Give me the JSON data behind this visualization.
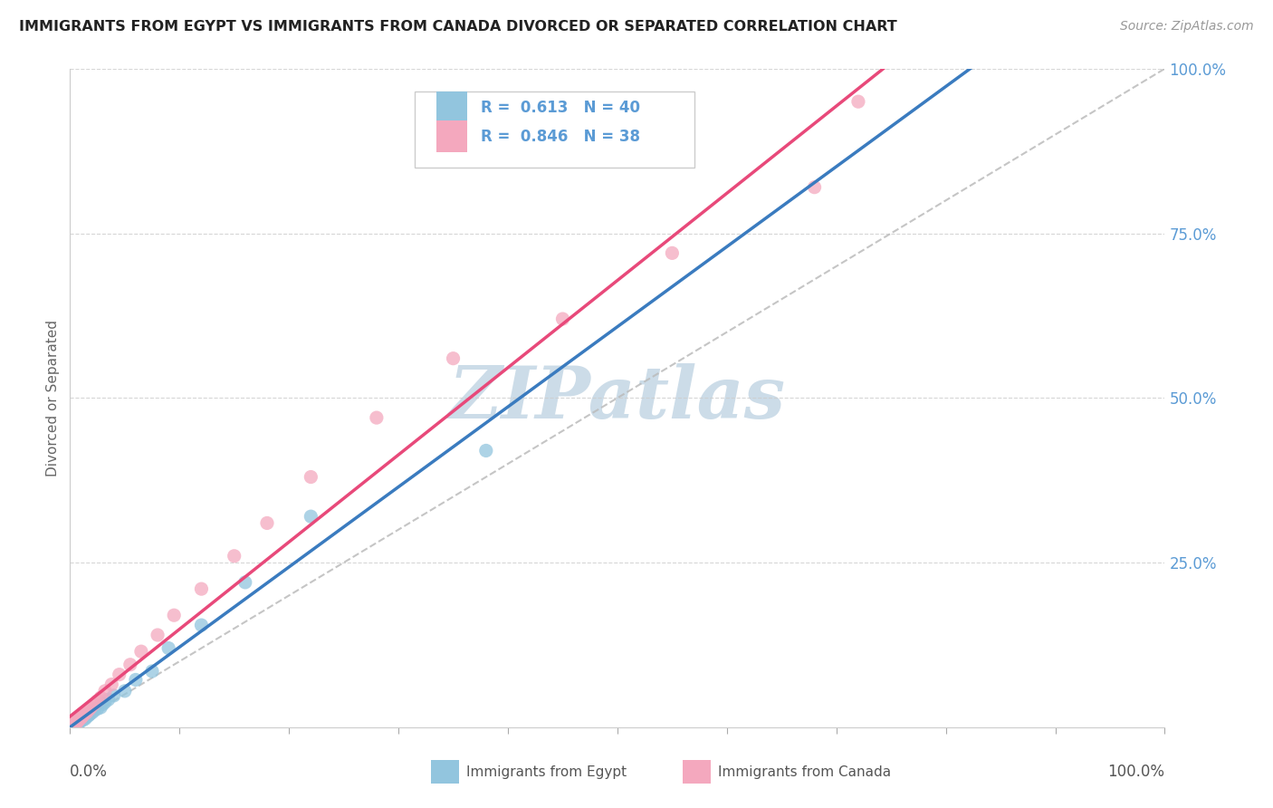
{
  "title": "IMMIGRANTS FROM EGYPT VS IMMIGRANTS FROM CANADA DIVORCED OR SEPARATED CORRELATION CHART",
  "source": "Source: ZipAtlas.com",
  "ylabel": "Divorced or Separated",
  "r_egypt": 0.613,
  "n_egypt": 40,
  "r_canada": 0.846,
  "n_canada": 38,
  "color_egypt": "#92c5de",
  "color_canada": "#f4a8be",
  "color_egypt_line": "#3a7bbf",
  "color_canada_line": "#e8497a",
  "color_diagonal": "#bbbbbb",
  "watermark_color": "#ccdce8",
  "background_color": "#ffffff",
  "grid_color": "#cccccc",
  "ytick_color": "#5b9bd5",
  "title_color": "#222222",
  "source_color": "#999999",
  "legend_edge_color": "#cccccc",
  "egypt_x": [
    0.002,
    0.003,
    0.004,
    0.004,
    0.005,
    0.005,
    0.006,
    0.006,
    0.006,
    0.007,
    0.007,
    0.008,
    0.008,
    0.009,
    0.009,
    0.01,
    0.011,
    0.012,
    0.013,
    0.014,
    0.015,
    0.016,
    0.017,
    0.018,
    0.02,
    0.022,
    0.025,
    0.028,
    0.03,
    0.032,
    0.035,
    0.04,
    0.05,
    0.06,
    0.075,
    0.09,
    0.12,
    0.16,
    0.22,
    0.38
  ],
  "egypt_y": [
    0.003,
    0.002,
    0.005,
    0.006,
    0.004,
    0.007,
    0.005,
    0.008,
    0.01,
    0.006,
    0.009,
    0.007,
    0.011,
    0.008,
    0.012,
    0.01,
    0.013,
    0.011,
    0.015,
    0.013,
    0.016,
    0.017,
    0.018,
    0.02,
    0.022,
    0.025,
    0.028,
    0.03,
    0.035,
    0.038,
    0.042,
    0.048,
    0.055,
    0.072,
    0.085,
    0.12,
    0.155,
    0.22,
    0.32,
    0.42
  ],
  "canada_x": [
    0.001,
    0.002,
    0.003,
    0.004,
    0.005,
    0.006,
    0.006,
    0.007,
    0.008,
    0.009,
    0.009,
    0.01,
    0.011,
    0.012,
    0.013,
    0.015,
    0.017,
    0.019,
    0.022,
    0.025,
    0.028,
    0.032,
    0.038,
    0.045,
    0.055,
    0.065,
    0.08,
    0.095,
    0.12,
    0.15,
    0.18,
    0.22,
    0.28,
    0.35,
    0.45,
    0.55,
    0.68,
    0.72
  ],
  "canada_y": [
    0.002,
    0.004,
    0.003,
    0.006,
    0.008,
    0.007,
    0.01,
    0.009,
    0.011,
    0.013,
    0.015,
    0.014,
    0.016,
    0.018,
    0.02,
    0.022,
    0.026,
    0.03,
    0.035,
    0.04,
    0.045,
    0.055,
    0.065,
    0.08,
    0.095,
    0.115,
    0.14,
    0.17,
    0.21,
    0.26,
    0.31,
    0.38,
    0.47,
    0.56,
    0.62,
    0.72,
    0.82,
    0.95
  ],
  "xlim": [
    0,
    1.0
  ],
  "ylim": [
    0,
    1.0
  ],
  "ytick_positions": [
    0.0,
    0.25,
    0.5,
    0.75,
    1.0
  ],
  "ytick_labels": [
    "",
    "25.0%",
    "50.0%",
    "75.0%",
    "100.0%"
  ]
}
